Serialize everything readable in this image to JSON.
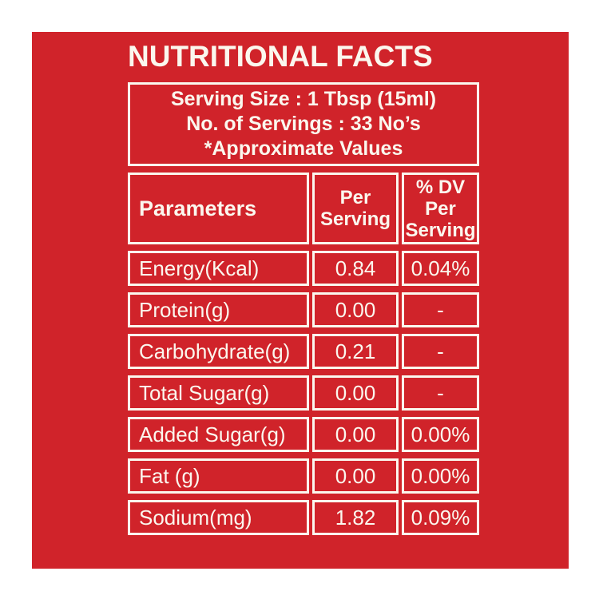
{
  "colors": {
    "background": "#FFFFFF",
    "panel_red": "#D0232A",
    "text_cream": "#FBF7EE"
  },
  "title": "NUTRITIONAL FACTS",
  "serving_info": {
    "serving_size": "Serving Size : 1 Tbsp (15ml)",
    "servings_count": "No. of Servings : 33 No’s",
    "note": "*Approximate Values"
  },
  "table": {
    "headers": {
      "parameters": "Parameters",
      "per_serving": "Per Serving",
      "dv_per_serving": "% DV Per Serving"
    },
    "rows": [
      {
        "parameter": "Energy(Kcal)",
        "per_serving": "0.84",
        "dv": "0.04%"
      },
      {
        "parameter": "Protein(g)",
        "per_serving": "0.00",
        "dv": "-"
      },
      {
        "parameter": "Carbohydrate(g)",
        "per_serving": "0.21",
        "dv": "-"
      },
      {
        "parameter": "Total Sugar(g)",
        "per_serving": "0.00",
        "dv": "-"
      },
      {
        "parameter": "Added Sugar(g)",
        "per_serving": "0.00",
        "dv": "0.00%"
      },
      {
        "parameter": "Fat (g)",
        "per_serving": "0.00",
        "dv": "0.00%"
      },
      {
        "parameter": "Sodium(mg)",
        "per_serving": "1.82",
        "dv": "0.09%"
      }
    ]
  }
}
